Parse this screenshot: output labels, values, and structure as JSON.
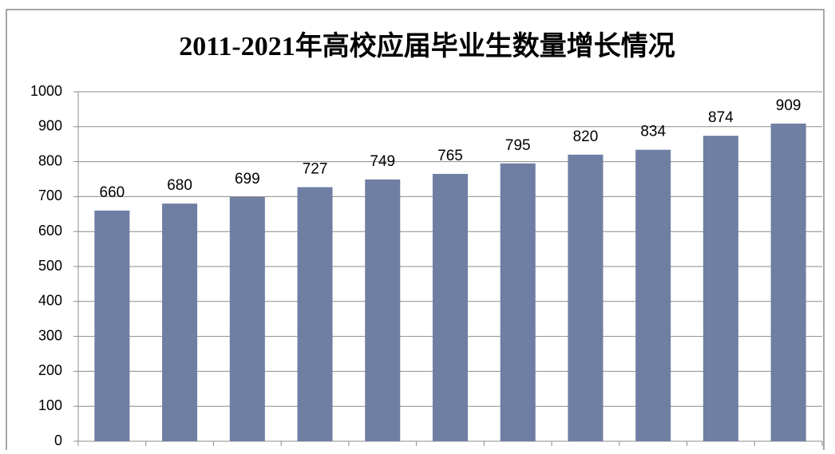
{
  "chart_data": {
    "type": "bar",
    "title": "2011-2021年高校应届毕业生数量增长情况",
    "categories": [
      null,
      null,
      null,
      null,
      null,
      null,
      null,
      null,
      null,
      null,
      null
    ],
    "values": [
      660,
      680,
      699,
      727,
      749,
      765,
      795,
      820,
      834,
      874,
      909
    ],
    "color": "#6f7ea3",
    "ylim": [
      0,
      1000
    ],
    "yticks": [
      0,
      100,
      200,
      300,
      400,
      500,
      600,
      700,
      800,
      900,
      1000
    ],
    "grid": true
  }
}
